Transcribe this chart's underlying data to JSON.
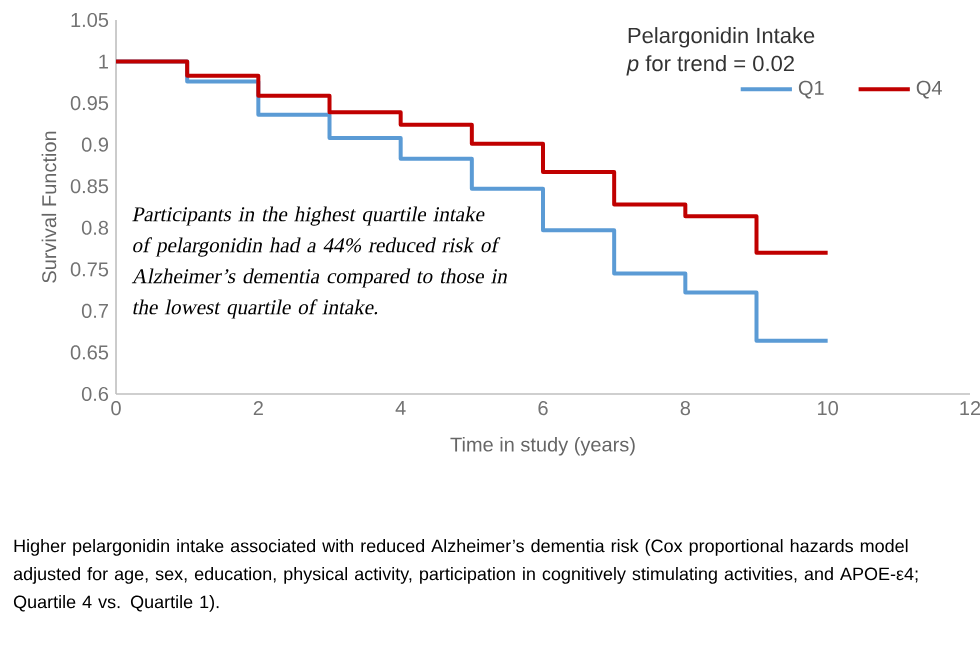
{
  "chart_data": {
    "type": "step",
    "xlabel": "Time in study (years)",
    "ylabel": "Survival Function",
    "x": [
      0,
      1,
      2,
      3,
      4,
      5,
      6,
      7,
      8,
      9,
      10
    ],
    "series": [
      {
        "name": "Q1",
        "color": "#5b9bd5",
        "values": [
          1.0,
          0.976,
          0.936,
          0.908,
          0.883,
          0.847,
          0.797,
          0.745,
          0.722,
          0.664,
          0.664
        ]
      },
      {
        "name": "Q4",
        "color": "#c00000",
        "values": [
          1.0,
          0.983,
          0.959,
          0.939,
          0.924,
          0.901,
          0.867,
          0.828,
          0.814,
          0.77,
          0.77
        ]
      }
    ],
    "xlim": [
      0,
      12
    ],
    "xticks": [
      0,
      2,
      4,
      6,
      8,
      10,
      12
    ],
    "ylim": [
      0.6,
      1.05
    ],
    "yticks": [
      0.6,
      0.65,
      0.7,
      0.75,
      0.8,
      0.85,
      0.9,
      0.95,
      1,
      1.05
    ],
    "grid": false,
    "legend": "top right",
    "marker": "none",
    "line_style": "solid",
    "annotations": [
      "Pelargonidin Intake",
      "*p* for trend = 0.02",
      "Participants in the highest quartile intake of pelargonidin had a 44% reduced risk of Alzheimer’s dementia compared to those in the lowest quartile of intake.",
      "Higher pelargonidin intake associated with reduced Alzheimer’s dementia risk (Cox proportional hazards model adjusted for age, sex, education, physical activity, participation in cognitively stimulating activities, and APOE-ε4; Quartile 4 vs. Quartile 1)."
    ]
  }
}
